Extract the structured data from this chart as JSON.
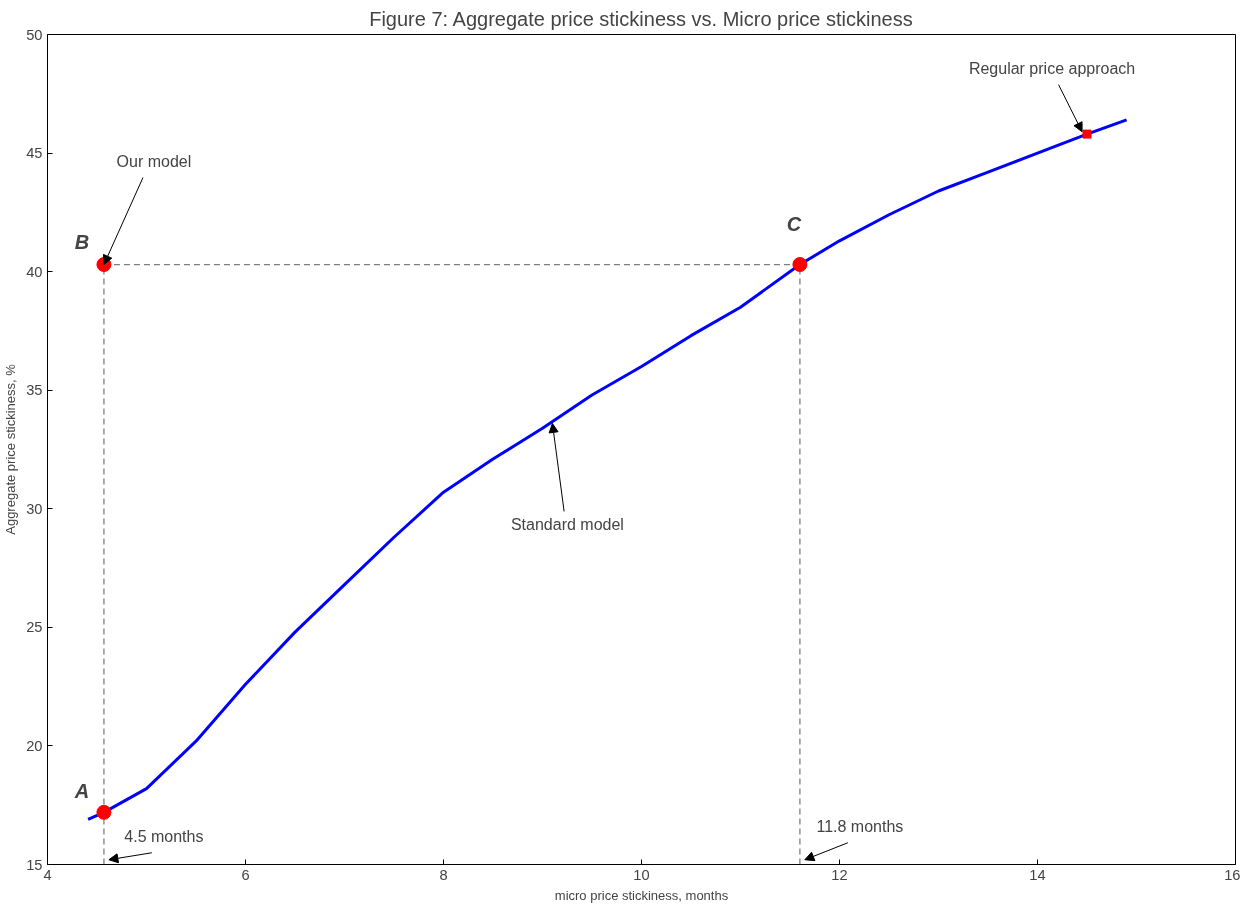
{
  "chart_data": {
    "type": "line",
    "title": "Figure 7: Aggregate price stickiness vs. Micro price stickiness",
    "xlabel": "micro price stickiness, months",
    "ylabel": "Aggregate price stickiness, %",
    "xlim": [
      4,
      16
    ],
    "xticks": [
      4,
      6,
      8,
      10,
      12,
      14,
      16
    ],
    "ylim": [
      15,
      50
    ],
    "yticks": [
      15,
      20,
      25,
      30,
      35,
      40,
      45,
      50
    ],
    "grid": false,
    "series": [
      {
        "color": "#7f7f7f",
        "line_style": "dashed",
        "marker": "none",
        "x": [
          4.57,
          11.6
        ],
        "values": [
          40.3,
          40.3
        ]
      },
      {
        "color": "#7f7f7f",
        "line_style": "dashed",
        "marker": "none",
        "x": [
          4.57,
          4.57
        ],
        "values": [
          15,
          40.3
        ]
      },
      {
        "color": "#7f7f7f",
        "line_style": "dashed",
        "marker": "none",
        "x": [
          11.6,
          11.6
        ],
        "values": [
          15,
          40.3
        ]
      },
      {
        "color": "#0000ff",
        "line_style": "solid",
        "marker": "none",
        "x": [
          4.41,
          4.57,
          5.0,
          5.5,
          6.0,
          6.5,
          7.0,
          7.5,
          8.0,
          8.5,
          9.0,
          9.5,
          10.0,
          10.5,
          11.0,
          11.6,
          12.0,
          12.5,
          13.0,
          13.5,
          14.0,
          14.5,
          14.9
        ],
        "values": [
          16.9,
          17.2,
          18.2,
          20.2,
          22.6,
          24.8,
          26.8,
          28.8,
          30.7,
          32.1,
          33.4,
          34.8,
          36.0,
          37.3,
          38.5,
          40.3,
          41.3,
          42.4,
          43.4,
          44.2,
          45.0,
          45.8,
          46.4
        ]
      },
      {
        "type": "scatter",
        "color": "#ff0000",
        "marker": "circle",
        "x": [
          4.57,
          4.57,
          11.6
        ],
        "values": [
          17.2,
          40.3,
          40.3
        ]
      },
      {
        "type": "scatter",
        "color": "#ff0000",
        "marker": "square",
        "x": [
          14.5
        ],
        "values": [
          45.8
        ]
      }
    ],
    "annotations": [
      {
        "text": "A",
        "x": 4.57,
        "y": 17.2
      },
      {
        "text": "B",
        "x": 4.57,
        "y": 40.3
      },
      {
        "text": "C",
        "x": 11.6,
        "y": 40.3
      },
      {
        "text": "Our model",
        "x": 4.57,
        "y": 40.3
      },
      {
        "text": "Regular price approach",
        "x": 14.45,
        "y": 45.9
      },
      {
        "text": "Standard model",
        "x": 9.1,
        "y": 33.6
      },
      {
        "text": "4.5 months",
        "x": 4.62,
        "y": 15.2
      },
      {
        "text": "11.8 months",
        "x": 11.65,
        "y": 15.2
      }
    ]
  }
}
